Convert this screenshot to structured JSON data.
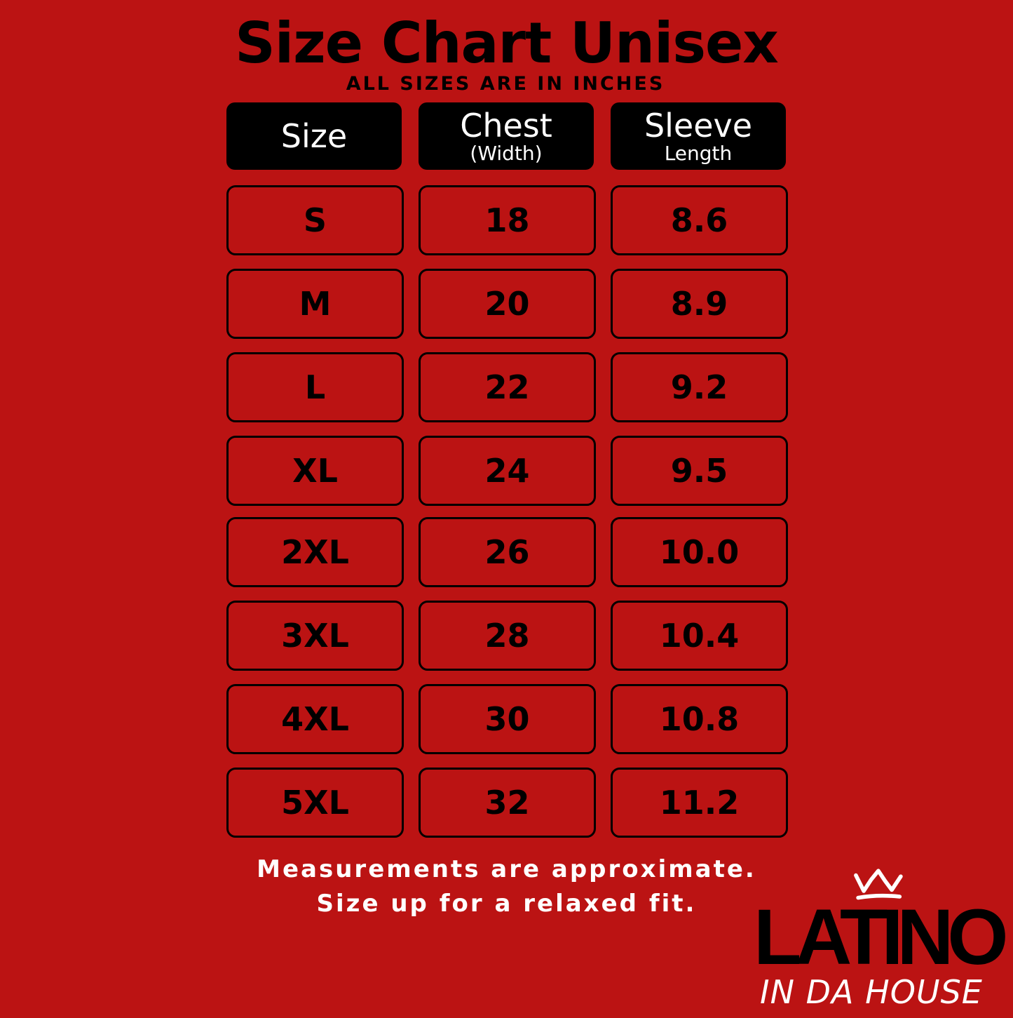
{
  "title": "Size Chart Unisex",
  "subtitle": "ALL SIZES ARE IN INCHES",
  "headers": [
    {
      "main": "Size",
      "sub": ""
    },
    {
      "main": "Chest",
      "sub": "(Width)"
    },
    {
      "main": "Sleeve",
      "sub": "Length"
    }
  ],
  "rows": [
    [
      "S",
      "18",
      "8.6"
    ],
    [
      "M",
      "20",
      "8.9"
    ],
    [
      "L",
      "22",
      "9.2"
    ],
    [
      "XL",
      "24",
      "9.5"
    ],
    [
      "2XL",
      "26",
      "10.0"
    ],
    [
      "3XL",
      "28",
      "10.4"
    ],
    [
      "4XL",
      "30",
      "10.8"
    ],
    [
      "5XL",
      "32",
      "11.2"
    ]
  ],
  "notes": [
    "Measurements are approximate.",
    "Size up for a relaxed fit."
  ],
  "logo": {
    "line1": "LATINO",
    "line2": "IN DA HOUSE",
    "icon": "crown-icon"
  },
  "colors": {
    "background": "#bb1313",
    "header": "#000000",
    "text": "#000000",
    "note": "#ffffff"
  }
}
